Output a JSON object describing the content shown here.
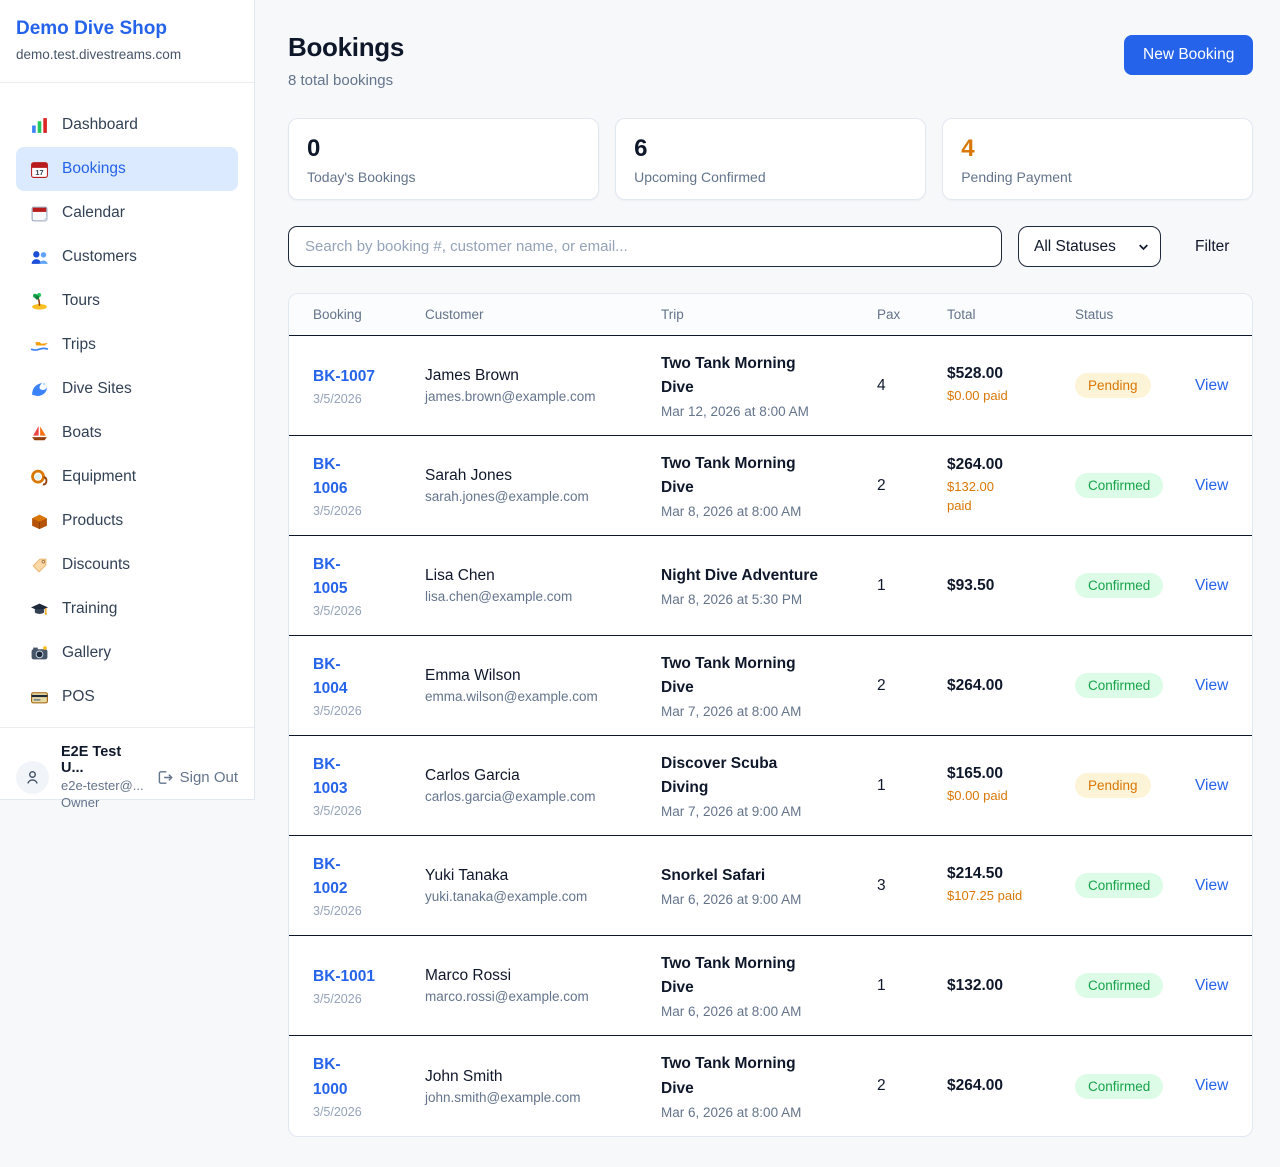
{
  "colors": {
    "accent_blue": "#2563eb",
    "pending_text": "#d97706",
    "pending_bg": "#fdf3d6",
    "confirmed_text": "#16a34a",
    "confirmed_bg": "#dcfce7",
    "paid_orange": "#d97706",
    "row_border": "#0f172a"
  },
  "sidebar": {
    "brand": {
      "name": "Demo Dive Shop",
      "domain": "demo.test.divestreams.com"
    },
    "nav": [
      {
        "label": "Dashboard",
        "icon": "bar-chart-icon",
        "active": false
      },
      {
        "label": "Bookings",
        "icon": "calendar-date-icon",
        "active": true
      },
      {
        "label": "Calendar",
        "icon": "spiral-calendar-icon",
        "active": false
      },
      {
        "label": "Customers",
        "icon": "people-icon",
        "active": false
      },
      {
        "label": "Tours",
        "icon": "island-icon",
        "active": false
      },
      {
        "label": "Trips",
        "icon": "speedboat-icon",
        "active": false
      },
      {
        "label": "Dive Sites",
        "icon": "wave-icon",
        "active": false
      },
      {
        "label": "Boats",
        "icon": "sailboat-icon",
        "active": false
      },
      {
        "label": "Equipment",
        "icon": "diving-mask-icon",
        "active": false
      },
      {
        "label": "Products",
        "icon": "package-icon",
        "active": false
      },
      {
        "label": "Discounts",
        "icon": "tag-icon",
        "active": false
      },
      {
        "label": "Training",
        "icon": "graduation-cap-icon",
        "active": false
      },
      {
        "label": "Gallery",
        "icon": "camera-icon",
        "active": false
      },
      {
        "label": "POS",
        "icon": "credit-card-icon",
        "active": false
      }
    ],
    "user": {
      "name": "E2E Test U...",
      "email": "e2e-tester@...",
      "role": "Owner",
      "signout_label": "Sign Out"
    }
  },
  "header": {
    "title": "Bookings",
    "subtitle": "8 total bookings",
    "new_booking_label": "New Booking"
  },
  "stats": [
    {
      "value": "0",
      "label": "Today's Bookings",
      "highlight": false
    },
    {
      "value": "6",
      "label": "Upcoming Confirmed",
      "highlight": false
    },
    {
      "value": "4",
      "label": "Pending Payment",
      "highlight": true
    }
  ],
  "filters": {
    "search_placeholder": "Search by booking #, customer name, or email...",
    "status_selected": "All Statuses",
    "filter_label": "Filter"
  },
  "table": {
    "columns": [
      "Booking",
      "Customer",
      "Trip",
      "Pax",
      "Total",
      "Status"
    ],
    "rows": [
      {
        "id": "BK-1007",
        "id_display": "BK-1007",
        "date": "3/5/2026",
        "customer": "James Brown",
        "email": "james.brown@example.com",
        "trip": "Two Tank Morning\nDive",
        "trip_datetime": "Mar 12, 2026 at 8:00 AM",
        "pax": "4",
        "total": "$528.00",
        "paid": "$0.00 paid",
        "status": "Pending",
        "view_label": "View"
      },
      {
        "id": "BK-1006",
        "id_display": "BK-\n1006",
        "date": "3/5/2026",
        "customer": "Sarah Jones",
        "email": "sarah.jones@example.com",
        "trip": "Two Tank Morning\nDive",
        "trip_datetime": "Mar 8, 2026 at 8:00 AM",
        "pax": "2",
        "total": "$264.00",
        "paid": "$132.00\npaid",
        "status": "Confirmed",
        "view_label": "View"
      },
      {
        "id": "BK-1005",
        "id_display": "BK-\n1005",
        "date": "3/5/2026",
        "customer": "Lisa Chen",
        "email": "lisa.chen@example.com",
        "trip": "Night Dive Adventure",
        "trip_datetime": "Mar 8, 2026 at 5:30 PM",
        "pax": "1",
        "total": "$93.50",
        "paid": "",
        "status": "Confirmed",
        "view_label": "View"
      },
      {
        "id": "BK-1004",
        "id_display": "BK-\n1004",
        "date": "3/5/2026",
        "customer": "Emma Wilson",
        "email": "emma.wilson@example.com",
        "trip": "Two Tank Morning\nDive",
        "trip_datetime": "Mar 7, 2026 at 8:00 AM",
        "pax": "2",
        "total": "$264.00",
        "paid": "",
        "status": "Confirmed",
        "view_label": "View"
      },
      {
        "id": "BK-1003",
        "id_display": "BK-\n1003",
        "date": "3/5/2026",
        "customer": "Carlos Garcia",
        "email": "carlos.garcia@example.com",
        "trip": "Discover Scuba\nDiving",
        "trip_datetime": "Mar 7, 2026 at 9:00 AM",
        "pax": "1",
        "total": "$165.00",
        "paid": "$0.00 paid",
        "status": "Pending",
        "view_label": "View"
      },
      {
        "id": "BK-1002",
        "id_display": "BK-\n1002",
        "date": "3/5/2026",
        "customer": "Yuki Tanaka",
        "email": "yuki.tanaka@example.com",
        "trip": "Snorkel Safari",
        "trip_datetime": "Mar 6, 2026 at 9:00 AM",
        "pax": "3",
        "total": "$214.50",
        "paid": "$107.25 paid",
        "status": "Confirmed",
        "view_label": "View"
      },
      {
        "id": "BK-1001",
        "id_display": "BK-1001",
        "date": "3/5/2026",
        "customer": "Marco Rossi",
        "email": "marco.rossi@example.com",
        "trip": "Two Tank Morning\nDive",
        "trip_datetime": "Mar 6, 2026 at 8:00 AM",
        "pax": "1",
        "total": "$132.00",
        "paid": "",
        "status": "Confirmed",
        "view_label": "View"
      },
      {
        "id": "BK-1000",
        "id_display": "BK-\n1000",
        "date": "3/5/2026",
        "customer": "John Smith",
        "email": "john.smith@example.com",
        "trip": "Two Tank Morning\nDive",
        "trip_datetime": "Mar 6, 2026 at 8:00 AM",
        "pax": "2",
        "total": "$264.00",
        "paid": "",
        "status": "Confirmed",
        "view_label": "View"
      }
    ]
  }
}
